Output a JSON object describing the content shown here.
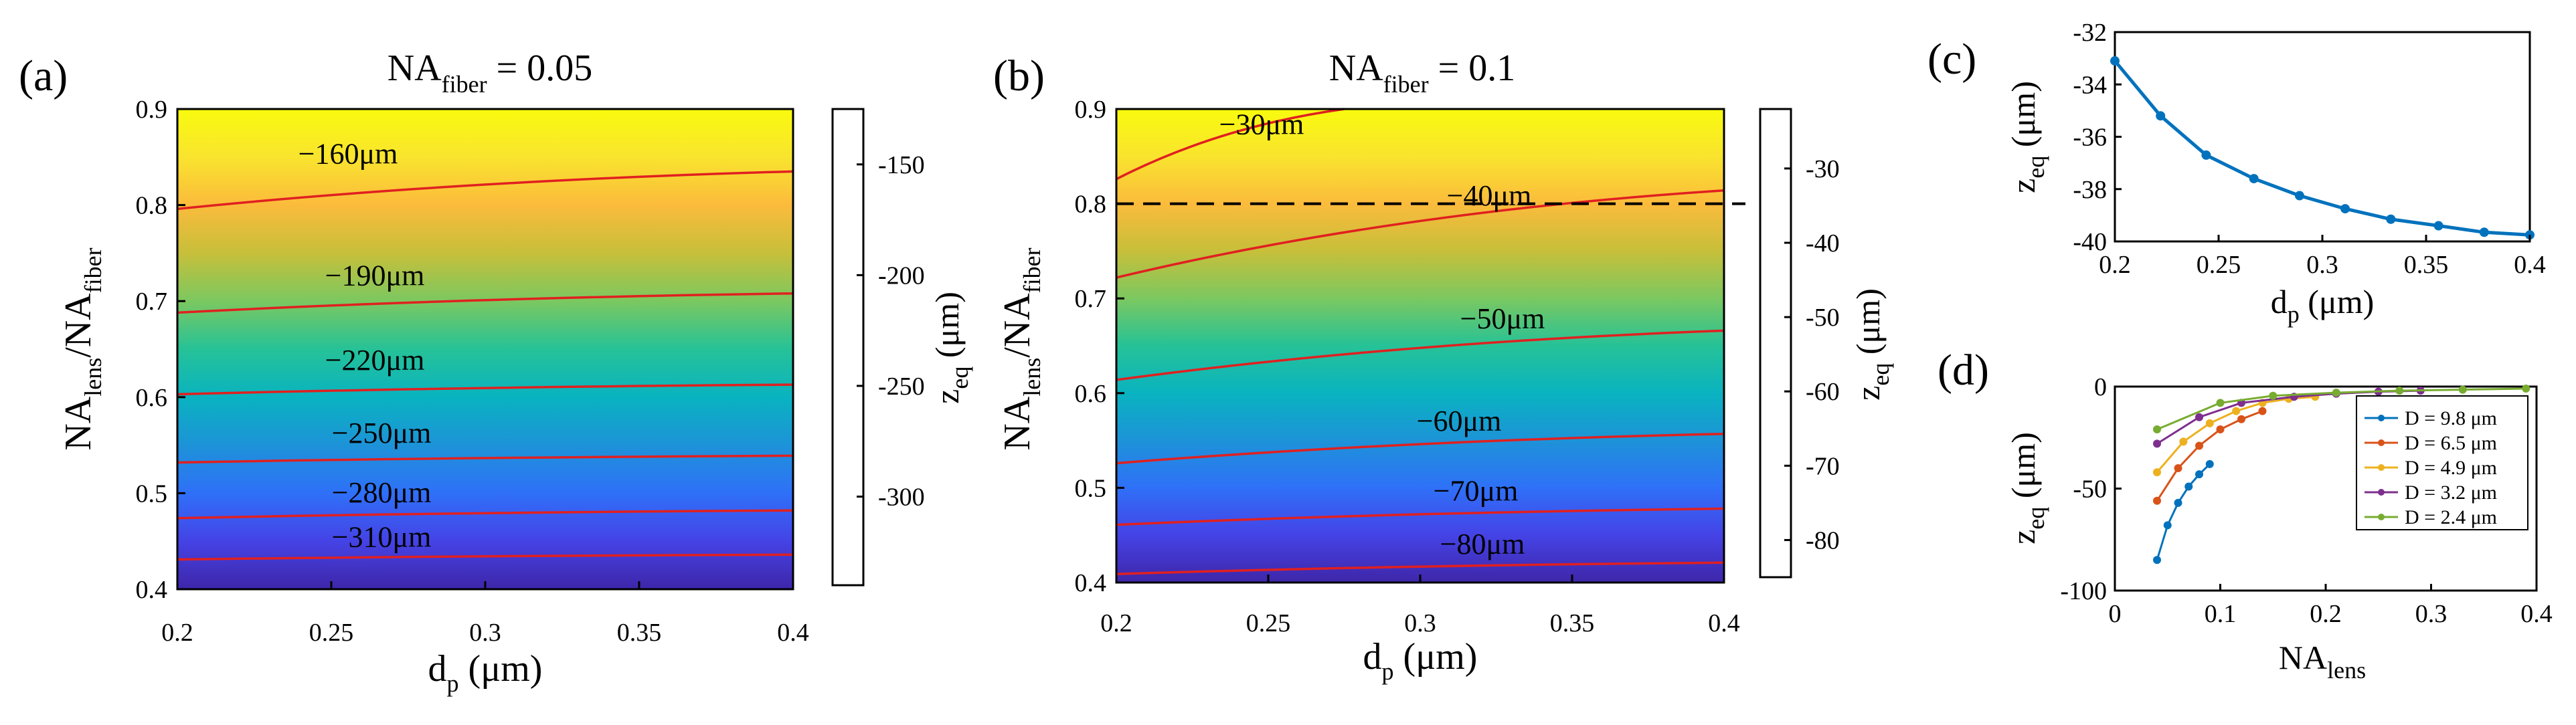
{
  "colors": {
    "contour": "#e02020",
    "line": "#0072bd",
    "parula": [
      "#3e26a8",
      "#4543e6",
      "#2f70f8",
      "#1d93d8",
      "#09b3c0",
      "#26c297",
      "#7bc860",
      "#c7bf3a",
      "#fbbb3c",
      "#f9e42e",
      "#f9fb0e"
    ]
  },
  "chart_data": [
    {
      "id": "a",
      "type": "heatmap",
      "panel_label": "(a)",
      "title_main": "NA",
      "title_sub": "fiber",
      "title_rest": " = 0.05",
      "xlabel_main": "d",
      "xlabel_sub": "p",
      "xlabel_rest": " (μm)",
      "ylabel": {
        "p1": "NA",
        "s1": "lens",
        "p2": "/NA",
        "s2": "fiber"
      },
      "xlim": [
        0.2,
        0.4
      ],
      "ylim": [
        0.4,
        0.9
      ],
      "xticks": [
        "0.2",
        "0.25",
        "0.3",
        "0.35",
        "0.4"
      ],
      "yticks": [
        "0.4",
        "0.5",
        "0.6",
        "0.7",
        "0.8",
        "0.9"
      ],
      "colorbar": {
        "range": [
          -340,
          -125
        ],
        "ticks": [
          "-150",
          "-200",
          "-250",
          "-300"
        ],
        "tick_values": [
          -150,
          -200,
          -250,
          -300
        ],
        "label_main": "z",
        "label_sub": "eq",
        "label_rest": " (μm)"
      },
      "contours": [
        {
          "label": "−160μm",
          "y_start": 0.796,
          "y_end": 0.835
        },
        {
          "label": "−190μm",
          "y_start": 0.688,
          "y_end": 0.708
        },
        {
          "label": "−220μm",
          "y_start": 0.603,
          "y_end": 0.613
        },
        {
          "label": "−250μm",
          "y_start": 0.532,
          "y_end": 0.539
        },
        {
          "label": "−280μm",
          "y_start": 0.474,
          "y_end": 0.482
        },
        {
          "label": "−310μm",
          "y_start": 0.431,
          "y_end": 0.436
        }
      ]
    },
    {
      "id": "b",
      "type": "heatmap",
      "panel_label": "(b)",
      "title_main": "NA",
      "title_sub": "fiber",
      "title_rest": " = 0.1",
      "xlabel_main": "d",
      "xlabel_sub": "p",
      "xlabel_rest": " (μm)",
      "ylabel": {
        "p1": "NA",
        "s1": "lens",
        "p2": "/NA",
        "s2": "fiber"
      },
      "xlim": [
        0.2,
        0.4
      ],
      "ylim": [
        0.4,
        0.9
      ],
      "xticks": [
        "0.2",
        "0.25",
        "0.3",
        "0.35",
        "0.4"
      ],
      "yticks": [
        "0.4",
        "0.5",
        "0.6",
        "0.7",
        "0.8",
        "0.9"
      ],
      "colorbar": {
        "range": [
          -85,
          -22
        ],
        "ticks": [
          "-30",
          "-40",
          "-50",
          "-60",
          "-70",
          "-80"
        ],
        "tick_values": [
          -30,
          -40,
          -50,
          -60,
          -70,
          -80
        ],
        "label_main": "z",
        "label_sub": "eq",
        "label_rest": " (μm)"
      },
      "contours": [
        {
          "label": "−30μm",
          "y_start": 0.826,
          "x_end": 0.275,
          "y_end": 0.9
        },
        {
          "label": "−40μm",
          "y_start": 0.722,
          "y_end": 0.814
        },
        {
          "label": "−50μm",
          "y_start": 0.614,
          "y_end": 0.666
        },
        {
          "label": "−60μm",
          "y_start": 0.526,
          "y_end": 0.557
        },
        {
          "label": "−70μm",
          "y_start": 0.461,
          "y_end": 0.478
        },
        {
          "label": "−80μm",
          "y_start": 0.409,
          "y_end": 0.421
        }
      ],
      "reference_line_y": 0.8
    },
    {
      "id": "c",
      "type": "line",
      "panel_label": "(c)",
      "xlabel_main": "d",
      "xlabel_sub": "p",
      "xlabel_rest": " (μm)",
      "ylabel_main": "z",
      "ylabel_sub": "eq",
      "ylabel_rest": " (μm)",
      "xlim": [
        0.2,
        0.4
      ],
      "ylim": [
        -40,
        -32
      ],
      "xticks": [
        "0.2",
        "0.25",
        "0.3",
        "0.35",
        "0.4"
      ],
      "yticks": [
        "-40",
        "-38",
        "-36",
        "-34",
        "-32"
      ],
      "x": [
        0.2,
        0.222,
        0.244,
        0.267,
        0.289,
        0.311,
        0.333,
        0.356,
        0.378,
        0.4
      ],
      "y": [
        -33.1,
        -35.2,
        -36.7,
        -37.6,
        -38.25,
        -38.75,
        -39.15,
        -39.4,
        -39.65,
        -39.75
      ]
    },
    {
      "id": "d",
      "type": "line",
      "panel_label": "(d)",
      "xlabel_main": "NA",
      "xlabel_sub": "lens",
      "xlabel_rest": "",
      "ylabel_main": "z",
      "ylabel_sub": "eq",
      "ylabel_rest": " (μm)",
      "xlim": [
        0,
        0.4
      ],
      "ylim": [
        -100,
        0
      ],
      "xticks": [
        "0",
        "0.1",
        "0.2",
        "0.3",
        "0.4"
      ],
      "yticks": [
        "0",
        "-50",
        "-100"
      ],
      "series": [
        {
          "name": "D = 9.8 μm",
          "color": "#0072bd",
          "x": [
            0.04,
            0.05,
            0.06,
            0.07,
            0.08,
            0.09
          ],
          "y": [
            -85,
            -68,
            -57,
            -49,
            -43,
            -38
          ]
        },
        {
          "name": "D = 6.5 μm",
          "color": "#d95319",
          "x": [
            0.04,
            0.06,
            0.08,
            0.1,
            0.12,
            0.14
          ],
          "y": [
            -56,
            -40,
            -29,
            -21,
            -16,
            -12
          ]
        },
        {
          "name": "D = 4.9 μm",
          "color": "#edb120",
          "x": [
            0.04,
            0.065,
            0.09,
            0.115,
            0.14,
            0.165,
            0.19
          ],
          "y": [
            -42,
            -27,
            -18,
            -12,
            -8,
            -6,
            -5
          ]
        },
        {
          "name": "D = 3.2 μm",
          "color": "#7e2f8e",
          "x": [
            0.04,
            0.08,
            0.12,
            0.17,
            0.21,
            0.25,
            0.29
          ],
          "y": [
            -28,
            -15,
            -8,
            -5,
            -3.5,
            -2.5,
            -2
          ]
        },
        {
          "name": "D = 2.4 μm",
          "color": "#77ac30",
          "x": [
            0.04,
            0.1,
            0.15,
            0.21,
            0.27,
            0.33,
            0.39
          ],
          "y": [
            -21,
            -8,
            -4.5,
            -3,
            -2,
            -1.5,
            -1
          ]
        }
      ]
    }
  ]
}
